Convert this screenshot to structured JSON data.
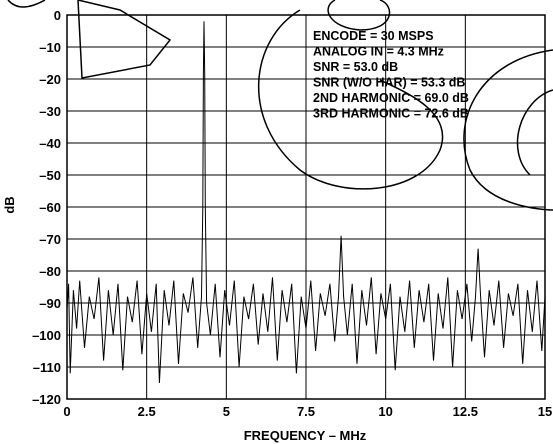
{
  "chart_data": {
    "type": "line",
    "title": "",
    "xlabel": "FREQUENCY – MHz",
    "ylabel": "dB",
    "xlim": [
      0,
      15
    ],
    "ylim": [
      -120,
      0
    ],
    "x_ticks": [
      "0",
      "2.5",
      "5",
      "7.5",
      "10",
      "12.5",
      "15"
    ],
    "y_ticks": [
      "0",
      "–10",
      "–20",
      "–30",
      "–40",
      "–50",
      "–60",
      "–70",
      "–80",
      "–90",
      "–100",
      "–110",
      "–120"
    ],
    "grid": true,
    "noise_floor_db": -90,
    "series": [
      {
        "values": [
          {
            "x": 0.0,
            "y": -92
          },
          {
            "x": 0.05,
            "y": -84
          },
          {
            "x": 0.1,
            "y": -112
          },
          {
            "x": 0.2,
            "y": -86
          },
          {
            "x": 0.3,
            "y": -98
          },
          {
            "x": 0.4,
            "y": -83
          },
          {
            "x": 0.55,
            "y": -104
          },
          {
            "x": 0.7,
            "y": -88
          },
          {
            "x": 0.85,
            "y": -95
          },
          {
            "x": 1.0,
            "y": -82
          },
          {
            "x": 1.15,
            "y": -108
          },
          {
            "x": 1.3,
            "y": -86
          },
          {
            "x": 1.45,
            "y": -100
          },
          {
            "x": 1.6,
            "y": -84
          },
          {
            "x": 1.75,
            "y": -111
          },
          {
            "x": 1.9,
            "y": -88
          },
          {
            "x": 2.05,
            "y": -96
          },
          {
            "x": 2.2,
            "y": -83
          },
          {
            "x": 2.35,
            "y": -106
          },
          {
            "x": 2.5,
            "y": -87
          },
          {
            "x": 2.65,
            "y": -99
          },
          {
            "x": 2.8,
            "y": -84
          },
          {
            "x": 2.9,
            "y": -115
          },
          {
            "x": 3.05,
            "y": -86
          },
          {
            "x": 3.2,
            "y": -97
          },
          {
            "x": 3.35,
            "y": -83
          },
          {
            "x": 3.5,
            "y": -109
          },
          {
            "x": 3.65,
            "y": -87
          },
          {
            "x": 3.8,
            "y": -93
          },
          {
            "x": 3.95,
            "y": -82
          },
          {
            "x": 4.1,
            "y": -104
          },
          {
            "x": 4.22,
            "y": -88
          },
          {
            "x": 4.26,
            "y": -60
          },
          {
            "x": 4.28,
            "y": -18
          },
          {
            "x": 4.3,
            "y": -2
          },
          {
            "x": 4.32,
            "y": -18
          },
          {
            "x": 4.34,
            "y": -60
          },
          {
            "x": 4.38,
            "y": -90
          },
          {
            "x": 4.5,
            "y": -100
          },
          {
            "x": 4.65,
            "y": -84
          },
          {
            "x": 4.8,
            "y": -107
          },
          {
            "x": 4.95,
            "y": -86
          },
          {
            "x": 5.1,
            "y": -97
          },
          {
            "x": 5.25,
            "y": -83
          },
          {
            "x": 5.4,
            "y": -110
          },
          {
            "x": 5.55,
            "y": -88
          },
          {
            "x": 5.7,
            "y": -95
          },
          {
            "x": 5.85,
            "y": -84
          },
          {
            "x": 6.0,
            "y": -103
          },
          {
            "x": 6.15,
            "y": -87
          },
          {
            "x": 6.3,
            "y": -99
          },
          {
            "x": 6.45,
            "y": -82
          },
          {
            "x": 6.6,
            "y": -108
          },
          {
            "x": 6.75,
            "y": -86
          },
          {
            "x": 6.9,
            "y": -96
          },
          {
            "x": 7.05,
            "y": -84
          },
          {
            "x": 7.2,
            "y": -112
          },
          {
            "x": 7.35,
            "y": -88
          },
          {
            "x": 7.5,
            "y": -98
          },
          {
            "x": 7.65,
            "y": -83
          },
          {
            "x": 7.8,
            "y": -105
          },
          {
            "x": 7.95,
            "y": -87
          },
          {
            "x": 8.1,
            "y": -94
          },
          {
            "x": 8.25,
            "y": -84
          },
          {
            "x": 8.4,
            "y": -102
          },
          {
            "x": 8.52,
            "y": -88
          },
          {
            "x": 8.6,
            "y": -69
          },
          {
            "x": 8.68,
            "y": -88
          },
          {
            "x": 8.8,
            "y": -100
          },
          {
            "x": 8.95,
            "y": -84
          },
          {
            "x": 9.1,
            "y": -109
          },
          {
            "x": 9.25,
            "y": -86
          },
          {
            "x": 9.4,
            "y": -97
          },
          {
            "x": 9.55,
            "y": -82
          },
          {
            "x": 9.7,
            "y": -106
          },
          {
            "x": 9.85,
            "y": -87
          },
          {
            "x": 10.0,
            "y": -95
          },
          {
            "x": 10.15,
            "y": -84
          },
          {
            "x": 10.3,
            "y": -111
          },
          {
            "x": 10.45,
            "y": -88
          },
          {
            "x": 10.6,
            "y": -99
          },
          {
            "x": 10.75,
            "y": -83
          },
          {
            "x": 10.9,
            "y": -104
          },
          {
            "x": 11.05,
            "y": -86
          },
          {
            "x": 11.2,
            "y": -96
          },
          {
            "x": 11.35,
            "y": -84
          },
          {
            "x": 11.5,
            "y": -108
          },
          {
            "x": 11.65,
            "y": -87
          },
          {
            "x": 11.8,
            "y": -98
          },
          {
            "x": 11.95,
            "y": -82
          },
          {
            "x": 12.1,
            "y": -110
          },
          {
            "x": 12.25,
            "y": -86
          },
          {
            "x": 12.4,
            "y": -95
          },
          {
            "x": 12.55,
            "y": -84
          },
          {
            "x": 12.7,
            "y": -102
          },
          {
            "x": 12.82,
            "y": -88
          },
          {
            "x": 12.9,
            "y": -73
          },
          {
            "x": 12.98,
            "y": -88
          },
          {
            "x": 13.1,
            "y": -107
          },
          {
            "x": 13.25,
            "y": -86
          },
          {
            "x": 13.4,
            "y": -97
          },
          {
            "x": 13.55,
            "y": -83
          },
          {
            "x": 13.7,
            "y": -104
          },
          {
            "x": 13.85,
            "y": -87
          },
          {
            "x": 14.0,
            "y": -94
          },
          {
            "x": 14.15,
            "y": -84
          },
          {
            "x": 14.3,
            "y": -109
          },
          {
            "x": 14.45,
            "y": -86
          },
          {
            "x": 14.6,
            "y": -99
          },
          {
            "x": 14.75,
            "y": -83
          },
          {
            "x": 14.9,
            "y": -105
          },
          {
            "x": 15.0,
            "y": -88
          }
        ]
      }
    ],
    "annotations": [
      "ENCODE = 30 MSPS",
      "ANALOG IN = 4.3 MHz",
      "SNR = 53.0 dB",
      "SNR (W/O HAR) = 53.3 dB",
      "2ND HARMONIC = 69.0 dB",
      "3RD HARMONIC = 72.6 dB"
    ],
    "annotation_position": "top-right"
  }
}
